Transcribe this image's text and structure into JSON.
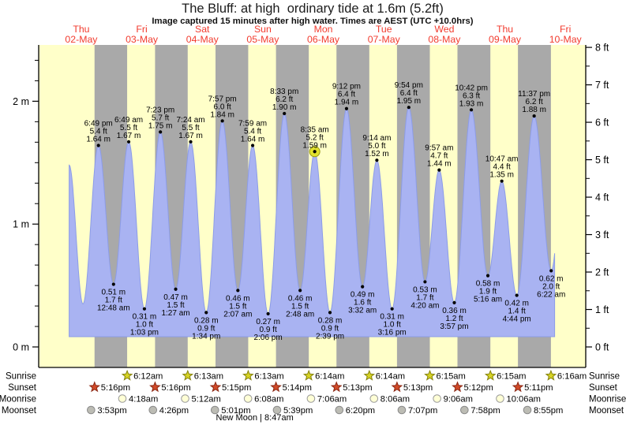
{
  "title": "The Bluff: at high  ordinary tide at 1.6m (5.2ft)",
  "subtitle": "Image captured 15 minutes after high water. Times are AEST (UTC +10.0hrs)",
  "colors": {
    "background": "#ffffff",
    "day_band": "#ffffc9",
    "night_band": "#a9a9a9",
    "tide_fill": "#a9b3f2",
    "tide_stroke": "#8c9ce8",
    "day_label_red": "#f23b2e",
    "current_marker_fill": "#e2e22e",
    "current_marker_stroke": "#9a9a14",
    "axis_black": "#000000"
  },
  "chart_data": {
    "type": "area",
    "title": "The Bluff: at high  ordinary tide at 1.6m (5.2ft)",
    "x_axis": {
      "days": [
        {
          "name": "Thu",
          "date": "02-May"
        },
        {
          "name": "Fri",
          "date": "03-May"
        },
        {
          "name": "Sat",
          "date": "04-May"
        },
        {
          "name": "Sun",
          "date": "05-May"
        },
        {
          "name": "Mon",
          "date": "06-May"
        },
        {
          "name": "Tue",
          "date": "07-May"
        },
        {
          "name": "Wed",
          "date": "08-May"
        },
        {
          "name": "Thu",
          "date": "09-May"
        },
        {
          "name": "Fri",
          "date": "10-May"
        }
      ]
    },
    "y_axis_left": {
      "unit": "m",
      "ticks": [
        "0 m",
        "1 m",
        "2 m"
      ],
      "range_m": [
        -0.17,
        2.46
      ]
    },
    "y_axis_right": {
      "unit": "ft",
      "ticks": [
        "0 ft",
        "1 ft",
        "2 ft",
        "3 ft",
        "4 ft",
        "5 ft",
        "6 ft",
        "7 ft",
        "8 ft"
      ]
    },
    "tide_events": [
      {
        "type": "high",
        "day": 0,
        "time": "6:49 pm",
        "ft": "5.4 ft",
        "m": "1.64 m"
      },
      {
        "type": "low",
        "day": 1,
        "time": "12:48 am",
        "ft": "1.7 ft",
        "m": "0.51 m"
      },
      {
        "type": "high",
        "day": 1,
        "time": "6:49 am",
        "ft": "5.5 ft",
        "m": "1.67 m"
      },
      {
        "type": "low",
        "day": 1,
        "time": "1:03 pm",
        "ft": "1.0 ft",
        "m": "0.31 m"
      },
      {
        "type": "high",
        "day": 1,
        "time": "7:23 pm",
        "ft": "5.7 ft",
        "m": "1.75 m"
      },
      {
        "type": "low",
        "day": 2,
        "time": "1:27 am",
        "ft": "1.5 ft",
        "m": "0.47 m"
      },
      {
        "type": "high",
        "day": 2,
        "time": "7:24 am",
        "ft": "5.5 ft",
        "m": "1.67 m"
      },
      {
        "type": "low",
        "day": 2,
        "time": "1:34 pm",
        "ft": "0.9 ft",
        "m": "0.28 m"
      },
      {
        "type": "high",
        "day": 2,
        "time": "7:57 pm",
        "ft": "6.0 ft",
        "m": "1.84 m"
      },
      {
        "type": "low",
        "day": 3,
        "time": "2:07 am",
        "ft": "1.5 ft",
        "m": "0.46 m"
      },
      {
        "type": "high",
        "day": 3,
        "time": "7:59 am",
        "ft": "5.4 ft",
        "m": "1.64 m"
      },
      {
        "type": "low",
        "day": 3,
        "time": "2:06 pm",
        "ft": "0.9 ft",
        "m": "0.27 m"
      },
      {
        "type": "high",
        "day": 3,
        "time": "8:33 pm",
        "ft": "6.2 ft",
        "m": "1.90 m"
      },
      {
        "type": "low",
        "day": 4,
        "time": "2:48 am",
        "ft": "1.5 ft",
        "m": "0.46 m"
      },
      {
        "type": "high",
        "day": 4,
        "time": "8:35 am",
        "ft": "5.2 ft",
        "m": "1.59 m",
        "current": true
      },
      {
        "type": "low",
        "day": 4,
        "time": "2:39 pm",
        "ft": "0.9 ft",
        "m": "0.28 m"
      },
      {
        "type": "high",
        "day": 4,
        "time": "9:12 pm",
        "ft": "6.4 ft",
        "m": "1.94 m"
      },
      {
        "type": "low",
        "day": 5,
        "time": "3:32 am",
        "ft": "1.6 ft",
        "m": "0.49 m"
      },
      {
        "type": "high",
        "day": 5,
        "time": "9:14 am",
        "ft": "5.0 ft",
        "m": "1.52 m"
      },
      {
        "type": "low",
        "day": 5,
        "time": "3:16 pm",
        "ft": "1.0 ft",
        "m": "0.31 m"
      },
      {
        "type": "high",
        "day": 5,
        "time": "9:54 pm",
        "ft": "6.4 ft",
        "m": "1.95 m"
      },
      {
        "type": "low",
        "day": 6,
        "time": "4:20 am",
        "ft": "1.7 ft",
        "m": "0.53 m"
      },
      {
        "type": "high",
        "day": 6,
        "time": "9:57 am",
        "ft": "4.7 ft",
        "m": "1.44 m"
      },
      {
        "type": "low",
        "day": 6,
        "time": "3:57 pm",
        "ft": "1.2 ft",
        "m": "0.36 m"
      },
      {
        "type": "high",
        "day": 6,
        "time": "10:42 pm",
        "ft": "6.3 ft",
        "m": "1.93 m"
      },
      {
        "type": "low",
        "day": 7,
        "time": "5:16 am",
        "ft": "1.9 ft",
        "m": "0.58 m"
      },
      {
        "type": "high",
        "day": 7,
        "time": "10:47 am",
        "ft": "4.4 ft",
        "m": "1.35 m"
      },
      {
        "type": "low",
        "day": 7,
        "time": "4:44 pm",
        "ft": "1.4 ft",
        "m": "0.42 m"
      },
      {
        "type": "high",
        "day": 7,
        "time": "11:37 pm",
        "ft": "6.2 ft",
        "m": "1.88 m"
      },
      {
        "type": "low",
        "day": 8,
        "time": "6:22 am",
        "ft": "2.0 ft",
        "m": "0.62 m"
      }
    ],
    "curve": {
      "start": {
        "day": 0,
        "hour": 7.2,
        "height": 1.48
      },
      "lead_low": {
        "day": 0,
        "hour": 12.67,
        "height": 0.35
      },
      "tail_high": {
        "day": 8,
        "hour": 12.5,
        "height": 1.8
      },
      "end": {
        "day": 8,
        "hour": 7.75
      }
    }
  },
  "sun_moon": {
    "rows": [
      {
        "label": "Sunrise",
        "icon": "sunrise-star-icon",
        "shape": "star",
        "icon_fill": "#d6d324",
        "icon_stroke": "#85820f",
        "entries": [
          {
            "day": 1,
            "time": "6:12am"
          },
          {
            "day": 2,
            "time": "6:13am"
          },
          {
            "day": 3,
            "time": "6:13am"
          },
          {
            "day": 4,
            "time": "6:14am"
          },
          {
            "day": 5,
            "time": "6:14am"
          },
          {
            "day": 6,
            "time": "6:15am"
          },
          {
            "day": 7,
            "time": "6:15am"
          },
          {
            "day": 8,
            "time": "6:16am"
          }
        ]
      },
      {
        "label": "Sunset",
        "icon": "sunset-star-icon",
        "shape": "star",
        "icon_fill": "#d14a28",
        "icon_stroke": "#8c2713",
        "entries": [
          {
            "day": 0,
            "time": "5:16pm"
          },
          {
            "day": 1,
            "time": "5:16pm"
          },
          {
            "day": 2,
            "time": "5:15pm"
          },
          {
            "day": 3,
            "time": "5:14pm"
          },
          {
            "day": 4,
            "time": "5:13pm"
          },
          {
            "day": 5,
            "time": "5:13pm"
          },
          {
            "day": 6,
            "time": "5:12pm"
          },
          {
            "day": 7,
            "time": "5:11pm"
          }
        ]
      },
      {
        "label": "Moonrise",
        "icon": "moonrise-circle-icon",
        "shape": "circle",
        "icon_fill": "#ffffd6",
        "icon_stroke": "#9a9a9a",
        "entries": [
          {
            "day": 1,
            "time": "4:18am"
          },
          {
            "day": 2,
            "time": "5:12am"
          },
          {
            "day": 3,
            "time": "6:08am"
          },
          {
            "day": 4,
            "time": "7:06am"
          },
          {
            "day": 5,
            "time": "8:06am"
          },
          {
            "day": 6,
            "time": "9:06am"
          },
          {
            "day": 7,
            "time": "10:06am"
          }
        ]
      },
      {
        "label": "Moonset",
        "icon": "moonset-circle-icon",
        "shape": "circle",
        "icon_fill": "#bcbcb4",
        "icon_stroke": "#8a8a8a",
        "entries": [
          {
            "day": 0,
            "time": "3:53pm"
          },
          {
            "day": 1,
            "time": "4:26pm"
          },
          {
            "day": 2,
            "time": "5:01pm"
          },
          {
            "day": 3,
            "time": "5:39pm"
          },
          {
            "day": 4,
            "time": "6:20pm"
          },
          {
            "day": 5,
            "time": "7:07pm"
          },
          {
            "day": 6,
            "time": "7:58pm"
          },
          {
            "day": 7,
            "time": "8:55pm"
          }
        ]
      }
    ],
    "new_moon": {
      "day": 3,
      "time": "8:47am",
      "label": "New Moon | 8:47am"
    }
  }
}
